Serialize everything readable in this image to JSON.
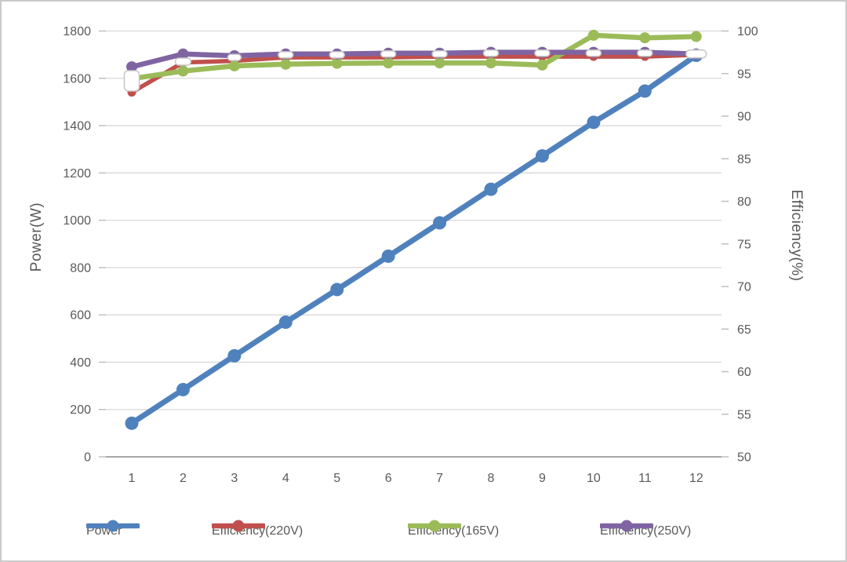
{
  "chart_data": {
    "type": "line",
    "title": "",
    "x": [
      1,
      2,
      3,
      4,
      5,
      6,
      7,
      8,
      9,
      10,
      11,
      12
    ],
    "xlabel": "",
    "grid": "horizontal",
    "left_axis": {
      "label": "Power(W)",
      "min": 0,
      "max": 1800,
      "step": 200,
      "ticks": [
        "0",
        "200",
        "400",
        "600",
        "800",
        "1000",
        "1200",
        "1400",
        "1600",
        "1800"
      ]
    },
    "right_axis": {
      "label": "Efficiency(%)",
      "min": 50,
      "max": 100,
      "step": 5,
      "ticks": [
        "50",
        "55",
        "60",
        "65",
        "70",
        "75",
        "80",
        "85",
        "90",
        "95",
        "100"
      ]
    },
    "series": [
      {
        "name": "Power",
        "axis": "left",
        "color": "#4F81BD",
        "marker": "circle",
        "values": [
          142,
          284,
          427,
          569,
          707,
          848,
          989,
          1131,
          1272,
          1414,
          1546,
          1697
        ]
      },
      {
        "name": "Efficiency(220V)",
        "axis": "right",
        "color": "#C0504D",
        "marker": "circle",
        "values": [
          92.8,
          96.3,
          96.5,
          96.9,
          96.9,
          96.9,
          97.0,
          97.0,
          97.0,
          97.0,
          97.0,
          97.2
        ]
      },
      {
        "name": "Efficiency(165V)",
        "axis": "right",
        "color": "#9BBB59",
        "marker": "circle",
        "values": [
          94.4,
          95.3,
          95.9,
          96.1,
          96.2,
          96.25,
          96.25,
          96.25,
          96.0,
          99.5,
          99.2,
          99.35
        ]
      },
      {
        "name": "Efficiency(250V)",
        "axis": "right",
        "color": "#8064A2",
        "marker": "circle",
        "values": [
          95.8,
          97.3,
          97.1,
          97.3,
          97.3,
          97.4,
          97.4,
          97.5,
          97.5,
          97.5,
          97.5,
          97.3
        ]
      }
    ],
    "white_dash_overlay": {
      "axis": "right",
      "fill": "#FFFFFF",
      "border": "#C6C6C6",
      "values": [
        94.15,
        96.4,
        96.9,
        97.2,
        97.2,
        97.3,
        97.3,
        97.4,
        97.4,
        97.4,
        97.4,
        97.3
      ],
      "heights": [
        26,
        9,
        8,
        8,
        8,
        8,
        8,
        8,
        8,
        8,
        8,
        10
      ],
      "widths": [
        19,
        20,
        17,
        19,
        19,
        19,
        19,
        19,
        19,
        19,
        19,
        26
      ]
    },
    "legend": {
      "position": "bottom",
      "entries": [
        "Power",
        "Efficiency(220V)",
        "Efficiency(165V)",
        "Efficiency(250V)"
      ]
    },
    "colors": {
      "gridline": "#D9D9D9",
      "axis_line": "#A8A8A8",
      "tick_mark": "#BFBFBF",
      "tick_text": "#595959",
      "background": "#FFFFFF",
      "border": "#C9C9C9"
    }
  }
}
